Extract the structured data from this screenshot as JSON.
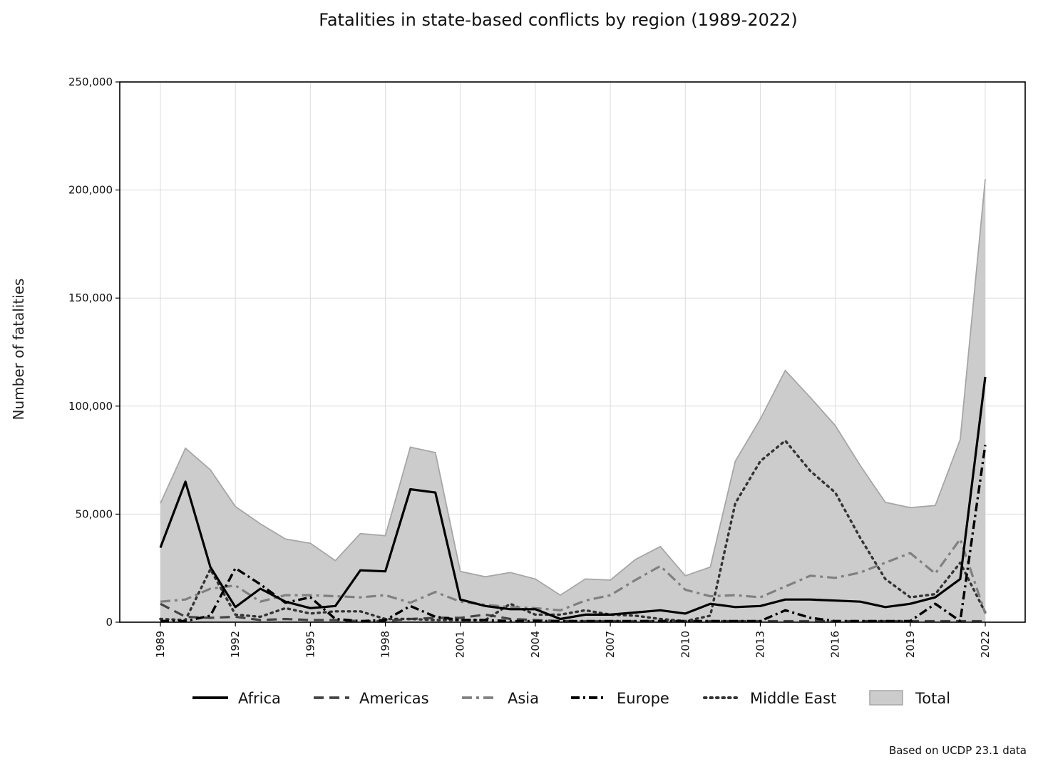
{
  "chart_data": {
    "type": "line",
    "title": "Fatalities in state-based conflicts by region (1989-2022)",
    "ylabel": "Number of fatalities",
    "xlabel": "",
    "source": "Based on UCDP 23.1 data",
    "ylim": [
      0,
      250000
    ],
    "yticks": [
      0,
      50000,
      100000,
      150000,
      200000,
      250000
    ],
    "ytick_labels": [
      "0",
      "50,000",
      "100,000",
      "150,000",
      "200,000",
      "250,000"
    ],
    "xticks": [
      1989,
      1992,
      1995,
      1998,
      2001,
      2004,
      2007,
      2010,
      2013,
      2016,
      2019,
      2022
    ],
    "xtick_labels": [
      "1989",
      "1992",
      "1995",
      "1998",
      "2001",
      "2004",
      "2007",
      "2010",
      "2013",
      "2016",
      "2019",
      "2022"
    ],
    "grid": true,
    "legend_position": "bottom",
    "x": [
      1989,
      1990,
      1991,
      1992,
      1993,
      1994,
      1995,
      1996,
      1997,
      1998,
      1999,
      2000,
      2001,
      2002,
      2003,
      2004,
      2005,
      2006,
      2007,
      2008,
      2009,
      2010,
      2011,
      2012,
      2013,
      2014,
      2015,
      2016,
      2017,
      2018,
      2019,
      2020,
      2021,
      2022
    ],
    "series": [
      {
        "name": "Total",
        "style": "area",
        "color": "#cccccc",
        "edge": "#a6a6a6",
        "values": [
          55000,
          80500,
          70500,
          53500,
          45500,
          38500,
          36500,
          28500,
          41000,
          40000,
          81000,
          78500,
          23500,
          21000,
          23000,
          20000,
          12500,
          20000,
          19500,
          29000,
          35000,
          21500,
          25500,
          74500,
          94000,
          116500,
          104000,
          91000,
          72500,
          55500,
          53000,
          54000,
          84500,
          205000
        ]
      },
      {
        "name": "Africa",
        "style": "solid",
        "color": "#000000",
        "values": [
          34500,
          65000,
          25500,
          7000,
          15500,
          9500,
          6500,
          7500,
          24000,
          23500,
          61500,
          60000,
          10500,
          7500,
          6000,
          6000,
          1500,
          3500,
          3500,
          4500,
          5500,
          4000,
          8500,
          7000,
          7500,
          10500,
          10500,
          10000,
          9500,
          7000,
          8500,
          11500,
          20000,
          113500
        ]
      },
      {
        "name": "Americas",
        "style": "dash",
        "color": "#444444",
        "values": [
          8500,
          2500,
          2000,
          2500,
          1000,
          1500,
          1000,
          1000,
          500,
          500,
          1500,
          2000,
          2000,
          3500,
          1500,
          1000,
          500,
          500,
          500,
          500,
          500,
          500,
          500,
          500,
          500,
          500,
          500,
          500,
          500,
          500,
          500,
          500,
          500,
          500
        ]
      },
      {
        "name": "Asia",
        "style": "dashdot-light",
        "color": "#808080",
        "values": [
          9500,
          10500,
          15500,
          17000,
          9500,
          12500,
          12500,
          12000,
          11500,
          12500,
          9000,
          14000,
          9500,
          8000,
          7000,
          6500,
          5500,
          10000,
          12500,
          19500,
          26000,
          15000,
          12000,
          12500,
          11500,
          16500,
          21500,
          20500,
          23000,
          27500,
          32000,
          22500,
          38500,
          4000
        ]
      },
      {
        "name": "Europe",
        "style": "dashdot",
        "color": "#000000",
        "values": [
          500,
          500,
          3000,
          25000,
          17500,
          9000,
          11500,
          1500,
          500,
          1000,
          7500,
          2500,
          1000,
          1000,
          500,
          500,
          500,
          500,
          500,
          500,
          500,
          500,
          500,
          500,
          500,
          5500,
          2000,
          500,
          500,
          500,
          500,
          8500,
          500,
          82000
        ]
      },
      {
        "name": "Middle East",
        "style": "dot",
        "color": "#333333",
        "values": [
          1500,
          1000,
          24500,
          3500,
          2500,
          6500,
          4000,
          5000,
          5000,
          1500,
          1500,
          1000,
          1000,
          1000,
          8500,
          3500,
          3500,
          5500,
          3500,
          3000,
          1500,
          500,
          3000,
          55000,
          74500,
          84000,
          70000,
          60000,
          39000,
          20000,
          11500,
          13000,
          27500,
          4500
        ]
      }
    ]
  }
}
